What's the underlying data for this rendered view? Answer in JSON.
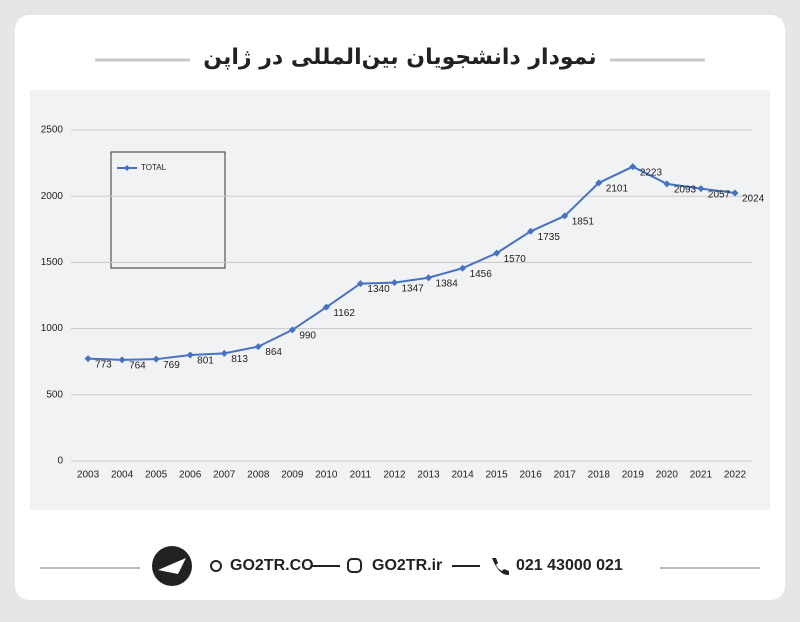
{
  "chart_data": {
    "type": "line",
    "title": "نمودار دانشجویان بین‌المللی در ژاپن",
    "categories": [
      "2003",
      "2004",
      "2005",
      "2006",
      "2007",
      "2008",
      "2009",
      "2010",
      "2011",
      "2012",
      "2013",
      "2014",
      "2015",
      "2016",
      "2017",
      "2018",
      "2019",
      "2020",
      "2021",
      "2022"
    ],
    "series": [
      {
        "name": "TOTAL",
        "color": "#4472c4",
        "values": [
          773,
          764,
          769,
          801,
          813,
          864,
          990,
          1162,
          1340,
          1347,
          1384,
          1456,
          1570,
          1735,
          1851,
          2101,
          2223,
          2093,
          2057,
          2024
        ]
      }
    ],
    "ylim": [
      0,
      2500
    ],
    "yticks": [
      0,
      500,
      1000,
      1500,
      2000,
      2500
    ],
    "grid": true,
    "legend": "top-left"
  },
  "footer": {
    "items": [
      "GO2TR.CO",
      "GO2TR.ir",
      "021 43000 021"
    ]
  }
}
